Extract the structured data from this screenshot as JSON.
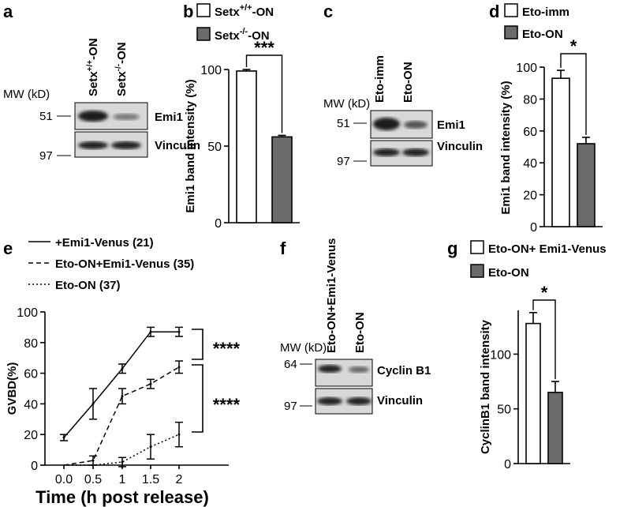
{
  "panels": {
    "a": {
      "label": "a",
      "mw": "MW (kD)",
      "lanes": [
        {
          "main": "Setx",
          "sup": "+/+",
          "tail": "-ON"
        },
        {
          "main": "Setx",
          "sup": "-/-",
          "tail": "-ON"
        }
      ],
      "markers": [
        "51",
        "97"
      ],
      "blots": [
        "Emi1",
        "Vinculin"
      ]
    },
    "c": {
      "label": "c",
      "mw": "MW (kD)",
      "lanes": [
        "Eto-imm",
        "Eto-ON"
      ],
      "markers": [
        "51",
        "97"
      ],
      "blots": [
        "Emi1",
        "Vinculin"
      ]
    },
    "f": {
      "label": "f",
      "mw": "MW (kD)",
      "lanes": [
        "Eto-ON+Emi1-Venus",
        "Eto-ON"
      ],
      "markers": [
        "64",
        "97"
      ],
      "blots": [
        "Cyclin B1",
        "Vinculin"
      ]
    }
  },
  "chart_data": [
    {
      "id": "b",
      "label": "b",
      "type": "bar",
      "ylabel": "Emi1 band intensity (%)",
      "ylim": [
        0,
        100
      ],
      "yticks": [
        0,
        50,
        100
      ],
      "legend": [
        {
          "main": "Setx",
          "sup": "+/+",
          "tail": "-ON"
        },
        {
          "main": "Setx",
          "sup": "-/-",
          "tail": "-ON"
        }
      ],
      "series": [
        {
          "name": "Setx+/+-ON",
          "value": 99,
          "error": 1,
          "color": "#ffffff"
        },
        {
          "name": "Setx-/--ON",
          "value": 56,
          "error": 1,
          "color": "#6b6b6b"
        }
      ],
      "significance": "***"
    },
    {
      "id": "d",
      "label": "d",
      "type": "bar",
      "ylabel": "Emi1 band intensity (%)",
      "ylim": [
        0,
        100
      ],
      "yticks": [
        0,
        20,
        40,
        60,
        80,
        100
      ],
      "legend": [
        "Eto-imm",
        "Eto-ON"
      ],
      "series": [
        {
          "name": "Eto-imm",
          "value": 93,
          "error": 5,
          "color": "#ffffff"
        },
        {
          "name": "Eto-ON",
          "value": 52,
          "error": 4,
          "color": "#6b6b6b"
        }
      ],
      "significance": "*"
    },
    {
      "id": "e",
      "label": "e",
      "type": "line",
      "xlabel": "Time (h post release)",
      "ylabel": "GVBD(%)",
      "ylim": [
        0,
        100
      ],
      "yticks": [
        0,
        20,
        40,
        60,
        80,
        100
      ],
      "x": [
        0,
        0.5,
        1,
        1.5,
        2
      ],
      "xticklabels": [
        "0.0",
        "0.5",
        "1",
        "1.5",
        "2"
      ],
      "series": [
        {
          "name": "+Emi1-Venus (21)",
          "dash": "solid",
          "values": [
            18,
            40,
            63,
            87,
            87
          ],
          "errors": [
            2,
            10,
            3,
            3,
            3
          ]
        },
        {
          "name": "Eto-ON+Emi1-Venus (35)",
          "dash": "dashed",
          "values": [
            0,
            3,
            45,
            53,
            64
          ],
          "errors": [
            0,
            3,
            5,
            3,
            4
          ]
        },
        {
          "name": "Eto-ON (37)",
          "dash": "dotted",
          "values": [
            0,
            0,
            2,
            12,
            20
          ],
          "errors": [
            0,
            0,
            3,
            8,
            8
          ]
        }
      ],
      "significance": [
        "****",
        "****"
      ]
    },
    {
      "id": "g",
      "label": "g",
      "type": "bar",
      "ylabel": "CyclinB1 band intensity",
      "ylim": [
        0,
        140
      ],
      "yticks": [
        0,
        50,
        100
      ],
      "legend": [
        "Eto-ON+ Emi1-Venus",
        "Eto-ON"
      ],
      "series": [
        {
          "name": "Eto-ON+ Emi1-Venus",
          "value": 128,
          "error": 10,
          "color": "#ffffff"
        },
        {
          "name": "Eto-ON",
          "value": 65,
          "error": 10,
          "color": "#6b6b6b"
        }
      ],
      "significance": "*"
    }
  ]
}
